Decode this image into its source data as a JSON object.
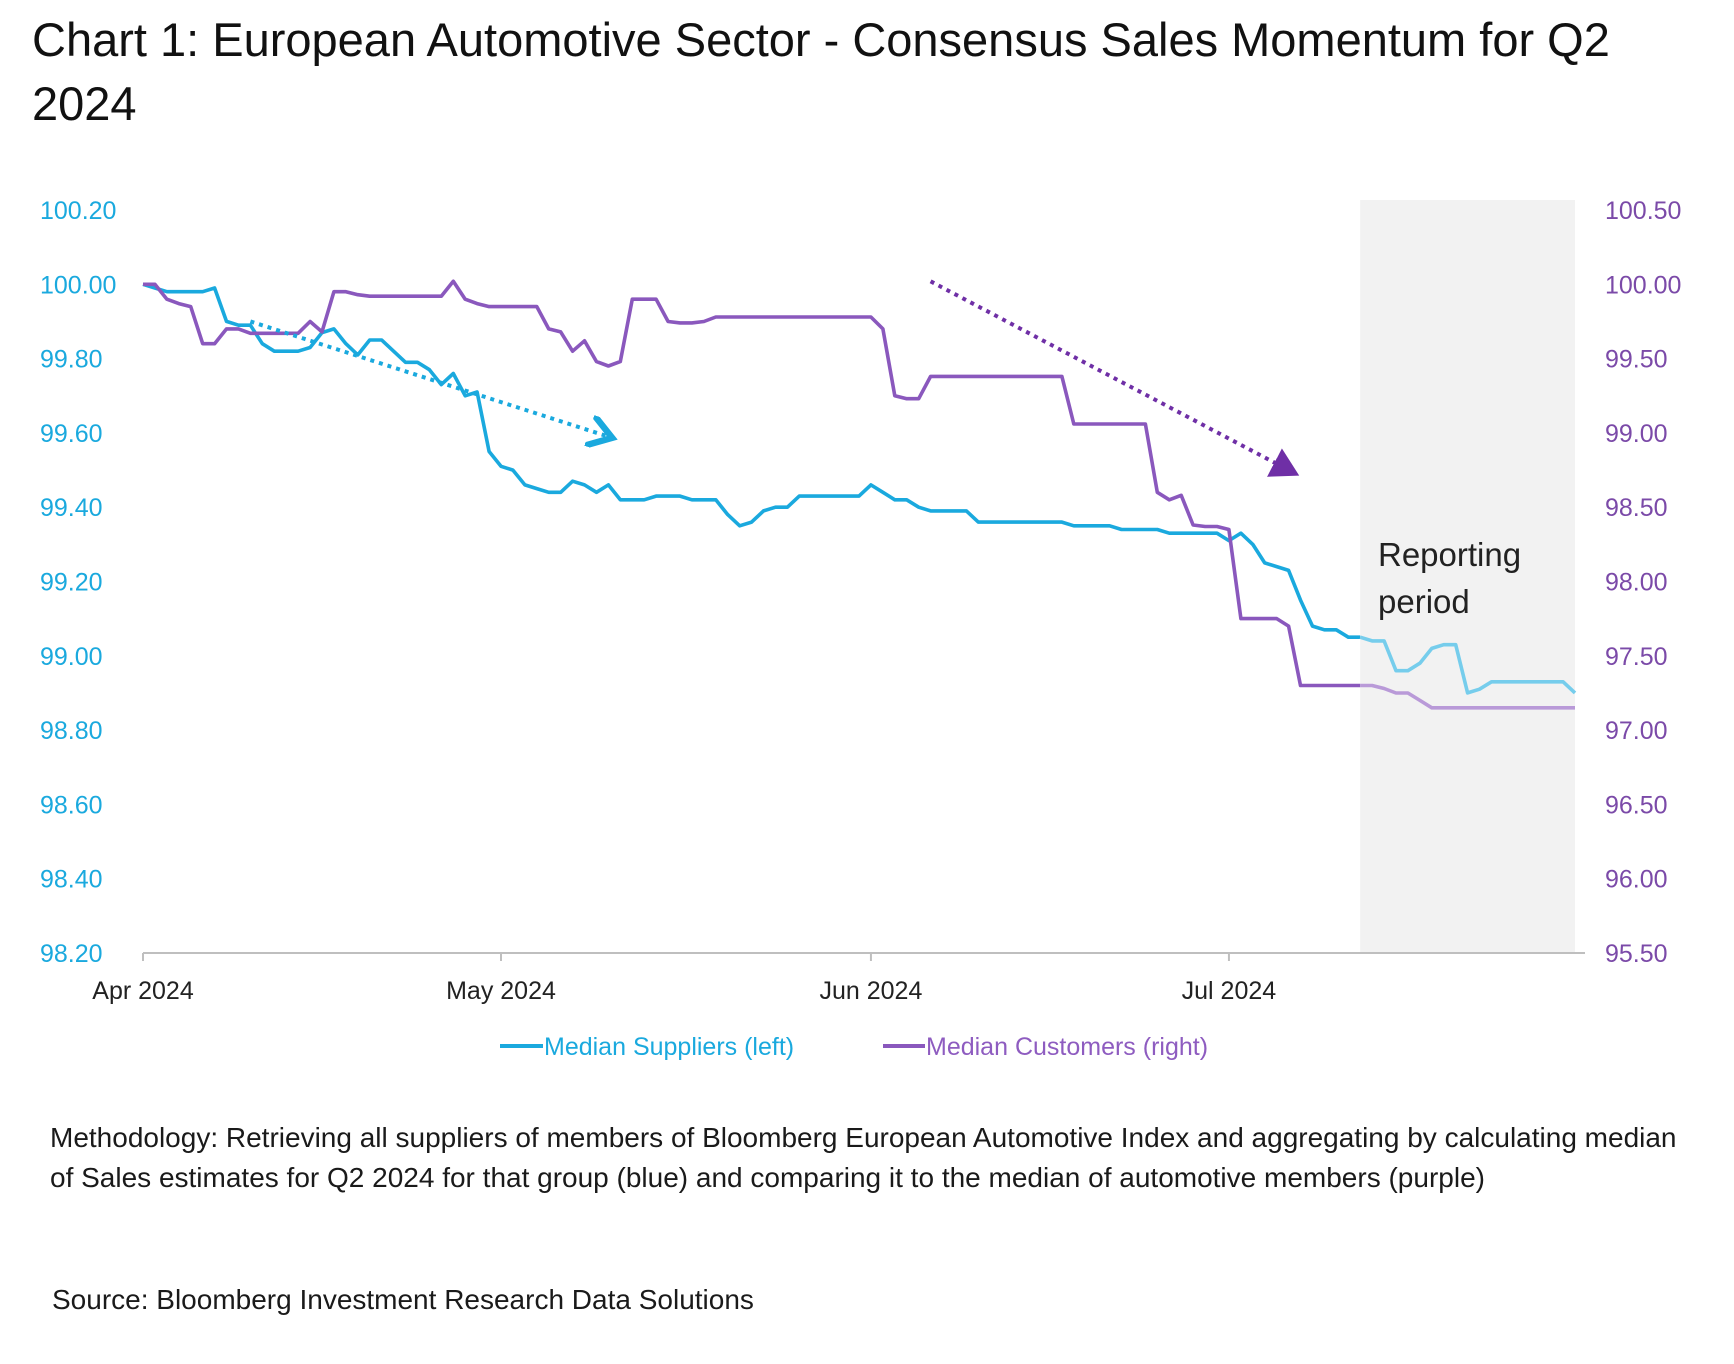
{
  "title": "Chart 1: European Automotive Sector - Consensus Sales Momentum for Q2 2024",
  "methodology": "Methodology: Retrieving all suppliers of members of Bloomberg European Automotive Index and aggregating by calculating median of Sales estimates for Q2 2024 for that group (blue) and comparing it to the median of automotive members (purple)",
  "source": "Source: Bloomberg Investment Research Data Solutions",
  "colors": {
    "suppliers": "#1aa9de",
    "customers": "#8a58bd",
    "customers_arrow": "#6f2fa6",
    "shade": "#f2f2f2"
  },
  "chart_data": {
    "type": "line",
    "title": "Chart 1: European Automotive Sector - Consensus Sales Momentum for Q2 2024",
    "x_start": "2024-04-01",
    "x_end": "2024-07-31",
    "x_tick_labels": [
      {
        "label": "Apr 2024",
        "day": 0
      },
      {
        "label": "May 2024",
        "day": 30
      },
      {
        "label": "Jun 2024",
        "day": 61
      },
      {
        "label": "Jul 2024",
        "day": 91
      }
    ],
    "y_left": {
      "min": 98.2,
      "max": 100.2,
      "ticks": [
        "100.20",
        "100.00",
        "99.80",
        "99.60",
        "99.40",
        "99.20",
        "99.00",
        "98.80",
        "98.60",
        "98.40",
        "98.20"
      ]
    },
    "y_right": {
      "min": 95.5,
      "max": 100.5,
      "ticks": [
        "100.50",
        "100.00",
        "99.50",
        "99.00",
        "98.50",
        "98.00",
        "97.50",
        "97.00",
        "96.50",
        "96.00",
        "95.50"
      ]
    },
    "series": [
      {
        "name": "Median Suppliers (left)",
        "axis": "left",
        "points": [
          [
            0,
            100.0
          ],
          [
            1,
            99.99
          ],
          [
            2,
            99.98
          ],
          [
            3,
            99.98
          ],
          [
            4,
            99.98
          ],
          [
            5,
            99.98
          ],
          [
            6,
            99.99
          ],
          [
            7,
            99.9
          ],
          [
            8,
            99.89
          ],
          [
            9,
            99.89
          ],
          [
            10,
            99.84
          ],
          [
            11,
            99.82
          ],
          [
            12,
            99.82
          ],
          [
            13,
            99.82
          ],
          [
            14,
            99.83
          ],
          [
            15,
            99.87
          ],
          [
            16,
            99.88
          ],
          [
            17,
            99.84
          ],
          [
            18,
            99.81
          ],
          [
            19,
            99.85
          ],
          [
            20,
            99.85
          ],
          [
            21,
            99.82
          ],
          [
            22,
            99.79
          ],
          [
            23,
            99.79
          ],
          [
            24,
            99.77
          ],
          [
            25,
            99.73
          ],
          [
            26,
            99.76
          ],
          [
            27,
            99.7
          ],
          [
            28,
            99.71
          ],
          [
            29,
            99.55
          ],
          [
            30,
            99.51
          ],
          [
            31,
            99.5
          ],
          [
            32,
            99.46
          ],
          [
            33,
            99.45
          ],
          [
            34,
            99.44
          ],
          [
            35,
            99.44
          ],
          [
            36,
            99.47
          ],
          [
            37,
            99.46
          ],
          [
            38,
            99.44
          ],
          [
            39,
            99.46
          ],
          [
            40,
            99.42
          ],
          [
            41,
            99.42
          ],
          [
            42,
            99.42
          ],
          [
            43,
            99.43
          ],
          [
            44,
            99.43
          ],
          [
            45,
            99.43
          ],
          [
            46,
            99.42
          ],
          [
            47,
            99.42
          ],
          [
            48,
            99.42
          ],
          [
            49,
            99.38
          ],
          [
            50,
            99.35
          ],
          [
            51,
            99.36
          ],
          [
            52,
            99.39
          ],
          [
            53,
            99.4
          ],
          [
            54,
            99.4
          ],
          [
            55,
            99.43
          ],
          [
            56,
            99.43
          ],
          [
            57,
            99.43
          ],
          [
            58,
            99.43
          ],
          [
            59,
            99.43
          ],
          [
            60,
            99.43
          ],
          [
            61,
            99.46
          ],
          [
            62,
            99.44
          ],
          [
            63,
            99.42
          ],
          [
            64,
            99.42
          ],
          [
            65,
            99.4
          ],
          [
            66,
            99.39
          ],
          [
            67,
            99.39
          ],
          [
            68,
            99.39
          ],
          [
            69,
            99.39
          ],
          [
            70,
            99.36
          ],
          [
            71,
            99.36
          ],
          [
            72,
            99.36
          ],
          [
            73,
            99.36
          ],
          [
            74,
            99.36
          ],
          [
            75,
            99.36
          ],
          [
            76,
            99.36
          ],
          [
            77,
            99.36
          ],
          [
            78,
            99.35
          ],
          [
            79,
            99.35
          ],
          [
            80,
            99.35
          ],
          [
            81,
            99.35
          ],
          [
            82,
            99.34
          ],
          [
            83,
            99.34
          ],
          [
            84,
            99.34
          ],
          [
            85,
            99.34
          ],
          [
            86,
            99.33
          ],
          [
            87,
            99.33
          ],
          [
            88,
            99.33
          ],
          [
            89,
            99.33
          ],
          [
            90,
            99.33
          ],
          [
            91,
            99.31
          ],
          [
            92,
            99.33
          ],
          [
            93,
            99.3
          ],
          [
            94,
            99.25
          ],
          [
            95,
            99.24
          ],
          [
            96,
            99.23
          ],
          [
            97,
            99.15
          ],
          [
            98,
            99.08
          ],
          [
            99,
            99.07
          ],
          [
            100,
            99.07
          ],
          [
            101,
            99.05
          ],
          [
            102,
            99.05
          ],
          [
            103,
            99.04
          ],
          [
            104,
            99.04
          ],
          [
            105,
            98.96
          ],
          [
            106,
            98.96
          ],
          [
            107,
            98.98
          ],
          [
            108,
            99.02
          ],
          [
            109,
            99.03
          ],
          [
            110,
            99.03
          ],
          [
            111,
            98.9
          ],
          [
            112,
            98.91
          ],
          [
            113,
            98.93
          ],
          [
            114,
            98.93
          ],
          [
            115,
            98.93
          ],
          [
            116,
            98.93
          ],
          [
            117,
            98.93
          ],
          [
            118,
            98.93
          ],
          [
            119,
            98.93
          ],
          [
            120,
            98.9
          ]
        ]
      },
      {
        "name": "Median Customers (right)",
        "axis": "right",
        "points": [
          [
            0,
            100.0
          ],
          [
            1,
            100.0
          ],
          [
            2,
            99.9
          ],
          [
            3,
            99.87
          ],
          [
            4,
            99.85
          ],
          [
            5,
            99.6
          ],
          [
            6,
            99.6
          ],
          [
            7,
            99.7
          ],
          [
            8,
            99.7
          ],
          [
            9,
            99.67
          ],
          [
            10,
            99.67
          ],
          [
            11,
            99.67
          ],
          [
            12,
            99.67
          ],
          [
            13,
            99.67
          ],
          [
            14,
            99.75
          ],
          [
            15,
            99.68
          ],
          [
            16,
            99.95
          ],
          [
            17,
            99.95
          ],
          [
            18,
            99.93
          ],
          [
            19,
            99.92
          ],
          [
            20,
            99.92
          ],
          [
            21,
            99.92
          ],
          [
            22,
            99.92
          ],
          [
            23,
            99.92
          ],
          [
            24,
            99.92
          ],
          [
            25,
            99.92
          ],
          [
            26,
            100.02
          ],
          [
            27,
            99.9
          ],
          [
            28,
            99.87
          ],
          [
            29,
            99.85
          ],
          [
            30,
            99.85
          ],
          [
            31,
            99.85
          ],
          [
            32,
            99.85
          ],
          [
            33,
            99.85
          ],
          [
            34,
            99.7
          ],
          [
            35,
            99.68
          ],
          [
            36,
            99.55
          ],
          [
            37,
            99.62
          ],
          [
            38,
            99.48
          ],
          [
            39,
            99.45
          ],
          [
            40,
            99.48
          ],
          [
            41,
            99.9
          ],
          [
            42,
            99.9
          ],
          [
            43,
            99.9
          ],
          [
            44,
            99.75
          ],
          [
            45,
            99.74
          ],
          [
            46,
            99.74
          ],
          [
            47,
            99.75
          ],
          [
            48,
            99.78
          ],
          [
            49,
            99.78
          ],
          [
            50,
            99.78
          ],
          [
            51,
            99.78
          ],
          [
            52,
            99.78
          ],
          [
            53,
            99.78
          ],
          [
            54,
            99.78
          ],
          [
            55,
            99.78
          ],
          [
            56,
            99.78
          ],
          [
            57,
            99.78
          ],
          [
            58,
            99.78
          ],
          [
            59,
            99.78
          ],
          [
            60,
            99.78
          ],
          [
            61,
            99.78
          ],
          [
            62,
            99.7
          ],
          [
            63,
            99.25
          ],
          [
            64,
            99.23
          ],
          [
            65,
            99.23
          ],
          [
            66,
            99.38
          ],
          [
            67,
            99.38
          ],
          [
            68,
            99.38
          ],
          [
            69,
            99.38
          ],
          [
            70,
            99.38
          ],
          [
            71,
            99.38
          ],
          [
            72,
            99.38
          ],
          [
            73,
            99.38
          ],
          [
            74,
            99.38
          ],
          [
            75,
            99.38
          ],
          [
            76,
            99.38
          ],
          [
            77,
            99.38
          ],
          [
            78,
            99.06
          ],
          [
            79,
            99.06
          ],
          [
            80,
            99.06
          ],
          [
            81,
            99.06
          ],
          [
            82,
            99.06
          ],
          [
            83,
            99.06
          ],
          [
            84,
            99.06
          ],
          [
            85,
            98.6
          ],
          [
            86,
            98.55
          ],
          [
            87,
            98.58
          ],
          [
            88,
            98.38
          ],
          [
            89,
            98.37
          ],
          [
            90,
            98.37
          ],
          [
            91,
            98.35
          ],
          [
            92,
            97.75
          ],
          [
            93,
            97.75
          ],
          [
            94,
            97.75
          ],
          [
            95,
            97.75
          ],
          [
            96,
            97.7
          ],
          [
            97,
            97.3
          ],
          [
            98,
            97.3
          ],
          [
            99,
            97.3
          ],
          [
            100,
            97.3
          ],
          [
            101,
            97.3
          ],
          [
            102,
            97.3
          ],
          [
            103,
            97.3
          ],
          [
            104,
            97.28
          ],
          [
            105,
            97.25
          ],
          [
            106,
            97.25
          ],
          [
            107,
            97.2
          ],
          [
            108,
            97.15
          ],
          [
            109,
            97.15
          ],
          [
            110,
            97.15
          ],
          [
            111,
            97.15
          ],
          [
            112,
            97.15
          ],
          [
            113,
            97.15
          ],
          [
            114,
            97.15
          ],
          [
            115,
            97.15
          ],
          [
            116,
            97.15
          ],
          [
            117,
            97.15
          ],
          [
            118,
            97.15
          ],
          [
            119,
            97.15
          ],
          [
            120,
            97.15
          ]
        ]
      }
    ],
    "shaded_region": {
      "label_lines": [
        "Reporting",
        "period"
      ],
      "from_day": 102,
      "to_day": 120
    },
    "trend_arrows": [
      {
        "series": "suppliers",
        "from": [
          9,
          99.9
        ],
        "to": [
          39,
          99.59
        ]
      },
      {
        "series": "customers",
        "from": [
          66,
          100.02
        ],
        "to": [
          96,
          98.75
        ]
      }
    ],
    "legend": {
      "position": "bottom-center"
    },
    "grid": false
  }
}
